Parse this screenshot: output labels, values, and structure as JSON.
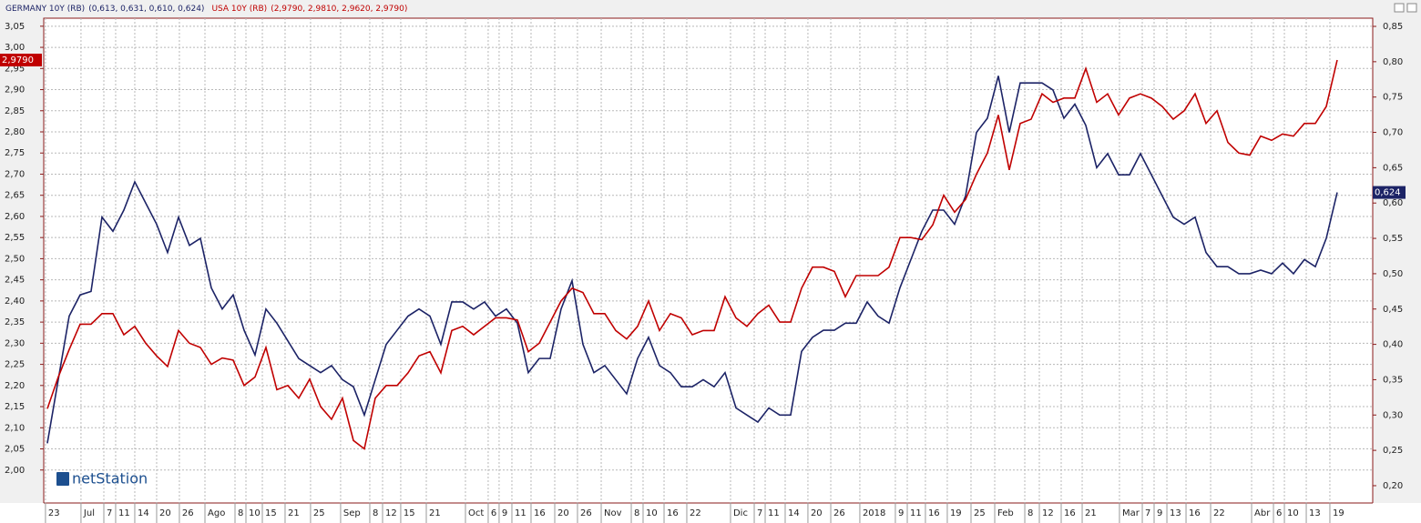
{
  "chart_data": {
    "type": "line",
    "brand": "netStation",
    "series": [
      {
        "name": "GERMANY 10Y (RB)",
        "ohlc_label": "(0,613, 0,631, 0,610, 0,624)",
        "last_value_label": "0,624",
        "color": "#1c2366",
        "axis": "y2",
        "values": [
          0.26,
          0.35,
          0.44,
          0.47,
          0.475,
          0.58,
          0.56,
          0.59,
          0.63,
          0.6,
          0.57,
          0.53,
          0.58,
          0.54,
          0.55,
          0.48,
          0.45,
          0.47,
          0.42,
          0.385,
          0.45,
          0.43,
          0.405,
          0.38,
          0.37,
          0.36,
          0.37,
          0.35,
          0.34,
          0.3,
          0.35,
          0.4,
          0.42,
          0.44,
          0.45,
          0.44,
          0.4,
          0.46,
          0.46,
          0.45,
          0.46,
          0.44,
          0.45,
          0.43,
          0.36,
          0.38,
          0.38,
          0.45,
          0.49,
          0.4,
          0.36,
          0.37,
          0.35,
          0.33,
          0.38,
          0.41,
          0.37,
          0.36,
          0.34,
          0.34,
          0.35,
          0.34,
          0.36,
          0.31,
          0.3,
          0.29,
          0.31,
          0.3,
          0.3,
          0.39,
          0.41,
          0.42,
          0.42,
          0.43,
          0.43,
          0.46,
          0.44,
          0.43,
          0.48,
          0.52,
          0.56,
          0.59,
          0.59,
          0.57,
          0.61,
          0.7,
          0.72,
          0.78,
          0.7,
          0.77,
          0.77,
          0.77,
          0.76,
          0.72,
          0.74,
          0.71,
          0.65,
          0.67,
          0.64,
          0.64,
          0.67,
          0.64,
          0.61,
          0.58,
          0.57,
          0.58,
          0.53,
          0.51,
          0.51,
          0.5,
          0.5,
          0.505,
          0.5,
          0.515,
          0.5,
          0.52,
          0.51,
          0.55,
          0.615
        ]
      },
      {
        "name": "USA 10Y (RB)",
        "ohlc_label": "(2,9790, 2,9810, 2,9620, 2,9790)",
        "last_value_label": "2,9790",
        "color": "#c00000",
        "axis": "y",
        "values": [
          2.145,
          2.22,
          2.285,
          2.345,
          2.345,
          2.37,
          2.37,
          2.32,
          2.34,
          2.3,
          2.27,
          2.245,
          2.33,
          2.3,
          2.29,
          2.25,
          2.265,
          2.26,
          2.2,
          2.22,
          2.29,
          2.19,
          2.2,
          2.17,
          2.215,
          2.15,
          2.12,
          2.17,
          2.07,
          2.05,
          2.17,
          2.2,
          2.2,
          2.23,
          2.27,
          2.28,
          2.23,
          2.33,
          2.34,
          2.32,
          2.34,
          2.36,
          2.36,
          2.355,
          2.28,
          2.3,
          2.35,
          2.4,
          2.43,
          2.42,
          2.37,
          2.37,
          2.33,
          2.31,
          2.34,
          2.4,
          2.33,
          2.37,
          2.36,
          2.32,
          2.33,
          2.33,
          2.41,
          2.36,
          2.34,
          2.37,
          2.39,
          2.35,
          2.35,
          2.43,
          2.48,
          2.48,
          2.47,
          2.41,
          2.46,
          2.46,
          2.46,
          2.48,
          2.55,
          2.55,
          2.545,
          2.58,
          2.65,
          2.61,
          2.64,
          2.7,
          2.75,
          2.84,
          2.71,
          2.82,
          2.83,
          2.89,
          2.87,
          2.88,
          2.88,
          2.95,
          2.87,
          2.89,
          2.84,
          2.88,
          2.89,
          2.88,
          2.86,
          2.83,
          2.85,
          2.89,
          2.82,
          2.85,
          2.775,
          2.75,
          2.745,
          2.79,
          2.78,
          2.795,
          2.79,
          2.82,
          2.82,
          2.86,
          2.97
        ]
      }
    ],
    "xlim": [
      -0.33,
      121.25
    ],
    "xticks": [
      {
        "value": -0.17,
        "label": "23"
      },
      {
        "value": 3.08,
        "label": "Jul"
      },
      {
        "value": 5.17,
        "label": "7"
      },
      {
        "value": 6.25,
        "label": "11"
      },
      {
        "value": 8.0,
        "label": "14"
      },
      {
        "value": 10.0,
        "label": "20"
      },
      {
        "value": 12.08,
        "label": "26"
      },
      {
        "value": 14.42,
        "label": "Ago"
      },
      {
        "value": 17.17,
        "label": "8"
      },
      {
        "value": 18.17,
        "label": "10"
      },
      {
        "value": 19.67,
        "label": "15"
      },
      {
        "value": 21.75,
        "label": "21"
      },
      {
        "value": 24.08,
        "label": "25"
      },
      {
        "value": 26.83,
        "label": "Sep"
      },
      {
        "value": 29.5,
        "label": "8"
      },
      {
        "value": 30.67,
        "label": "12"
      },
      {
        "value": 32.33,
        "label": "15"
      },
      {
        "value": 34.67,
        "label": "21"
      },
      {
        "value": 38.25,
        "label": "Oct"
      },
      {
        "value": 40.33,
        "label": "6"
      },
      {
        "value": 41.33,
        "label": "9"
      },
      {
        "value": 42.5,
        "label": "11"
      },
      {
        "value": 44.25,
        "label": "16"
      },
      {
        "value": 46.42,
        "label": "20"
      },
      {
        "value": 48.5,
        "label": "26"
      },
      {
        "value": 50.67,
        "label": "Nov"
      },
      {
        "value": 53.42,
        "label": "8"
      },
      {
        "value": 54.5,
        "label": "10"
      },
      {
        "value": 56.42,
        "label": "16"
      },
      {
        "value": 58.5,
        "label": "22"
      },
      {
        "value": 62.5,
        "label": "Dic"
      },
      {
        "value": 64.67,
        "label": "7"
      },
      {
        "value": 65.67,
        "label": "11"
      },
      {
        "value": 67.5,
        "label": "14"
      },
      {
        "value": 69.58,
        "label": "20"
      },
      {
        "value": 71.67,
        "label": "26"
      },
      {
        "value": 74.33,
        "label": "2018"
      },
      {
        "value": 77.58,
        "label": "9"
      },
      {
        "value": 78.67,
        "label": "11"
      },
      {
        "value": 80.33,
        "label": "16"
      },
      {
        "value": 82.33,
        "label": "19"
      },
      {
        "value": 84.5,
        "label": "25"
      },
      {
        "value": 86.67,
        "label": "Feb"
      },
      {
        "value": 89.42,
        "label": "8"
      },
      {
        "value": 90.75,
        "label": "12"
      },
      {
        "value": 92.75,
        "label": "16"
      },
      {
        "value": 94.67,
        "label": "21"
      },
      {
        "value": 98.08,
        "label": "Mar"
      },
      {
        "value": 100.17,
        "label": "7"
      },
      {
        "value": 101.25,
        "label": "9"
      },
      {
        "value": 102.42,
        "label": "13"
      },
      {
        "value": 104.17,
        "label": "16"
      },
      {
        "value": 106.42,
        "label": "22"
      },
      {
        "value": 110.17,
        "label": "Abr"
      },
      {
        "value": 112.17,
        "label": "6"
      },
      {
        "value": 113.17,
        "label": "10"
      },
      {
        "value": 115.17,
        "label": "13"
      },
      {
        "value": 117.33,
        "label": "19"
      }
    ],
    "ylim": [
      1.922,
      3.069
    ],
    "yticks": [
      {
        "value": 2.0,
        "label": "2,00"
      },
      {
        "value": 2.05,
        "label": "2,05"
      },
      {
        "value": 2.1,
        "label": "2,10"
      },
      {
        "value": 2.15,
        "label": "2,15"
      },
      {
        "value": 2.2,
        "label": "2,20"
      },
      {
        "value": 2.25,
        "label": "2,25"
      },
      {
        "value": 2.3,
        "label": "2,30"
      },
      {
        "value": 2.35,
        "label": "2,35"
      },
      {
        "value": 2.4,
        "label": "2,40"
      },
      {
        "value": 2.45,
        "label": "2,45"
      },
      {
        "value": 2.5,
        "label": "2,50"
      },
      {
        "value": 2.55,
        "label": "2,55"
      },
      {
        "value": 2.6,
        "label": "2,60"
      },
      {
        "value": 2.65,
        "label": "2,65"
      },
      {
        "value": 2.7,
        "label": "2,70"
      },
      {
        "value": 2.75,
        "label": "2,75"
      },
      {
        "value": 2.8,
        "label": "2,80"
      },
      {
        "value": 2.85,
        "label": "2,85"
      },
      {
        "value": 2.9,
        "label": "2,90"
      },
      {
        "value": 2.95,
        "label": "2,95"
      },
      {
        "value": 3.0,
        "label": "3,00"
      },
      {
        "value": 3.05,
        "label": "3,05"
      }
    ],
    "y2lim": [
      0.1755,
      0.8616
    ],
    "y2ticks": [
      {
        "value": 0.2,
        "label": "0,20"
      },
      {
        "value": 0.25,
        "label": "0,25"
      },
      {
        "value": 0.3,
        "label": "0,30"
      },
      {
        "value": 0.35,
        "label": "0,35"
      },
      {
        "value": 0.4,
        "label": "0,40"
      },
      {
        "value": 0.45,
        "label": "0,45"
      },
      {
        "value": 0.5,
        "label": "0,50"
      },
      {
        "value": 0.55,
        "label": "0,55"
      },
      {
        "value": 0.6,
        "label": "0,60"
      },
      {
        "value": 0.65,
        "label": "0,65"
      },
      {
        "value": 0.7,
        "label": "0,70"
      },
      {
        "value": 0.75,
        "label": "0,75"
      },
      {
        "value": 0.8,
        "label": "0,80"
      },
      {
        "value": 0.85,
        "label": "0,85"
      }
    ],
    "grid": true
  }
}
